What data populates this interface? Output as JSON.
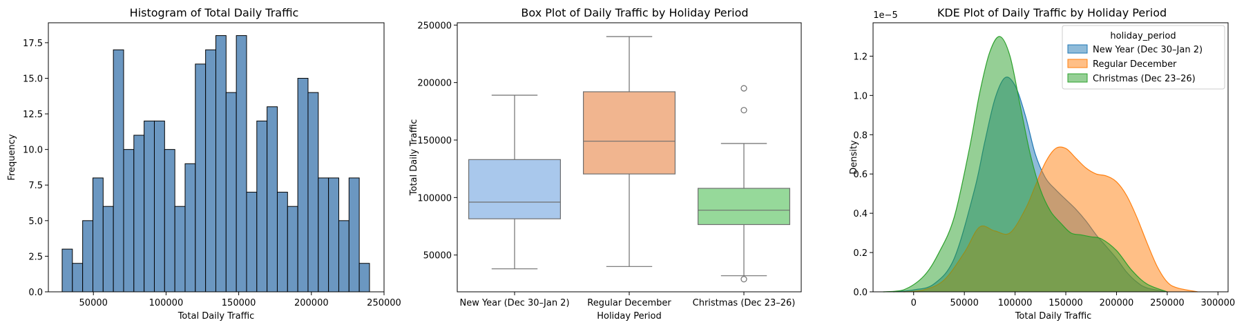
{
  "chart_data": [
    {
      "type": "bar",
      "title": "Histogram of Total Daily Traffic",
      "xlabel": "Total Daily Traffic",
      "ylabel": "Frequency",
      "xlim": [
        19000,
        250000
      ],
      "ylim": [
        0,
        18.9
      ],
      "x_ticks": [
        50000,
        100000,
        150000,
        200000,
        250000
      ],
      "x_tick_labels": [
        "50000",
        "100000",
        "150000",
        "200000",
        "250000"
      ],
      "y_ticks": [
        0,
        2.5,
        5,
        7.5,
        10,
        12.5,
        15,
        17.5
      ],
      "y_tick_labels": [
        "0.0",
        "2.5",
        "5.0",
        "7.5",
        "10.0",
        "12.5",
        "15.0",
        "17.5"
      ],
      "bin_start": 28500,
      "bin_width": 7050,
      "values": [
        3,
        2,
        5,
        8,
        6,
        17,
        10,
        11,
        12,
        12,
        10,
        6,
        9,
        16,
        17,
        18,
        14,
        18,
        7,
        12,
        13,
        7,
        6,
        15,
        14,
        8,
        8,
        5,
        8,
        2
      ],
      "color": "#6b97c1",
      "edge_color": "#000000"
    },
    {
      "type": "box",
      "title": "Box Plot of Daily Traffic by Holiday Period",
      "xlabel": "Holiday Period",
      "ylabel": "Total Daily Traffic",
      "ylim": [
        18000,
        252000
      ],
      "y_ticks": [
        50000,
        100000,
        150000,
        200000,
        250000
      ],
      "y_tick_labels": [
        "50000",
        "100000",
        "150000",
        "200000",
        "250000"
      ],
      "categories": [
        "New Year (Dec 30–Jan 2)",
        "Regular December",
        "Christmas (Dec 23–26)"
      ],
      "boxes": [
        {
          "whisker_low": 38000,
          "q1": 81500,
          "median": 96000,
          "q3": 133000,
          "whisker_high": 189000,
          "outliers": [],
          "color": "#a9c8ec"
        },
        {
          "whisker_low": 40000,
          "q1": 120500,
          "median": 149000,
          "q3": 192000,
          "whisker_high": 240000,
          "outliers": [],
          "color": "#f1b58f"
        },
        {
          "whisker_low": 32000,
          "q1": 76500,
          "median": 89000,
          "q3": 108000,
          "whisker_high": 147000,
          "outliers": [
            195000,
            176000,
            29000
          ],
          "color": "#96d99a"
        }
      ]
    },
    {
      "type": "area",
      "title": "KDE Plot of Daily Traffic by Holiday Period",
      "xlabel": "Total Daily Traffic",
      "ylabel": "Density",
      "scale_label": "1e−5",
      "xlim": [
        -40000,
        310000
      ],
      "ylim": [
        0,
        1.37
      ],
      "x_ticks": [
        0,
        50000,
        100000,
        150000,
        200000,
        250000,
        300000
      ],
      "x_tick_labels": [
        "0",
        "50000",
        "100000",
        "150000",
        "200000",
        "250000",
        "300000"
      ],
      "y_ticks": [
        0,
        0.2,
        0.4,
        0.6,
        0.8,
        1.0,
        1.2
      ],
      "y_tick_labels": [
        "0.0",
        "0.2",
        "0.4",
        "0.6",
        "0.8",
        "1.0",
        "1.2"
      ],
      "legend_title": "holiday_period",
      "legend_position": "top-right",
      "series": [
        {
          "name": "New Year (Dec 30–Jan 2)",
          "color": "#1f77b4",
          "x": [
            -20000,
            0,
            20000,
            40000,
            60000,
            70000,
            80000,
            90000,
            100000,
            110000,
            120000,
            130000,
            140000,
            150000,
            160000,
            170000,
            180000,
            190000,
            200000,
            210000,
            220000,
            230000,
            250000
          ],
          "y": [
            0,
            0.01,
            0.04,
            0.17,
            0.52,
            0.76,
            0.98,
            1.09,
            1.05,
            0.9,
            0.7,
            0.58,
            0.52,
            0.47,
            0.42,
            0.36,
            0.29,
            0.23,
            0.17,
            0.1,
            0.05,
            0.02,
            0
          ]
        },
        {
          "name": "Regular December",
          "color": "#ff7f0e",
          "x": [
            -10000,
            10000,
            30000,
            50000,
            65000,
            80000,
            95000,
            110000,
            120000,
            130000,
            140000,
            150000,
            160000,
            170000,
            180000,
            190000,
            200000,
            210000,
            220000,
            230000,
            240000,
            250000,
            260000,
            280000
          ],
          "y": [
            0,
            0.01,
            0.06,
            0.2,
            0.33,
            0.31,
            0.3,
            0.42,
            0.54,
            0.66,
            0.73,
            0.73,
            0.68,
            0.63,
            0.6,
            0.59,
            0.56,
            0.49,
            0.38,
            0.25,
            0.13,
            0.05,
            0.02,
            0
          ]
        },
        {
          "name": "Christmas (Dec 23–26)",
          "color": "#2ca02c",
          "x": [
            -30000,
            -10000,
            10000,
            25000,
            40000,
            55000,
            65000,
            75000,
            85000,
            95000,
            105000,
            115000,
            125000,
            135000,
            145000,
            155000,
            165000,
            175000,
            185000,
            200000,
            215000,
            230000,
            250000
          ],
          "y": [
            0,
            0.01,
            0.08,
            0.2,
            0.38,
            0.73,
            1.01,
            1.22,
            1.3,
            1.2,
            0.95,
            0.7,
            0.52,
            0.41,
            0.35,
            0.3,
            0.29,
            0.28,
            0.27,
            0.21,
            0.11,
            0.04,
            0
          ]
        }
      ]
    }
  ]
}
